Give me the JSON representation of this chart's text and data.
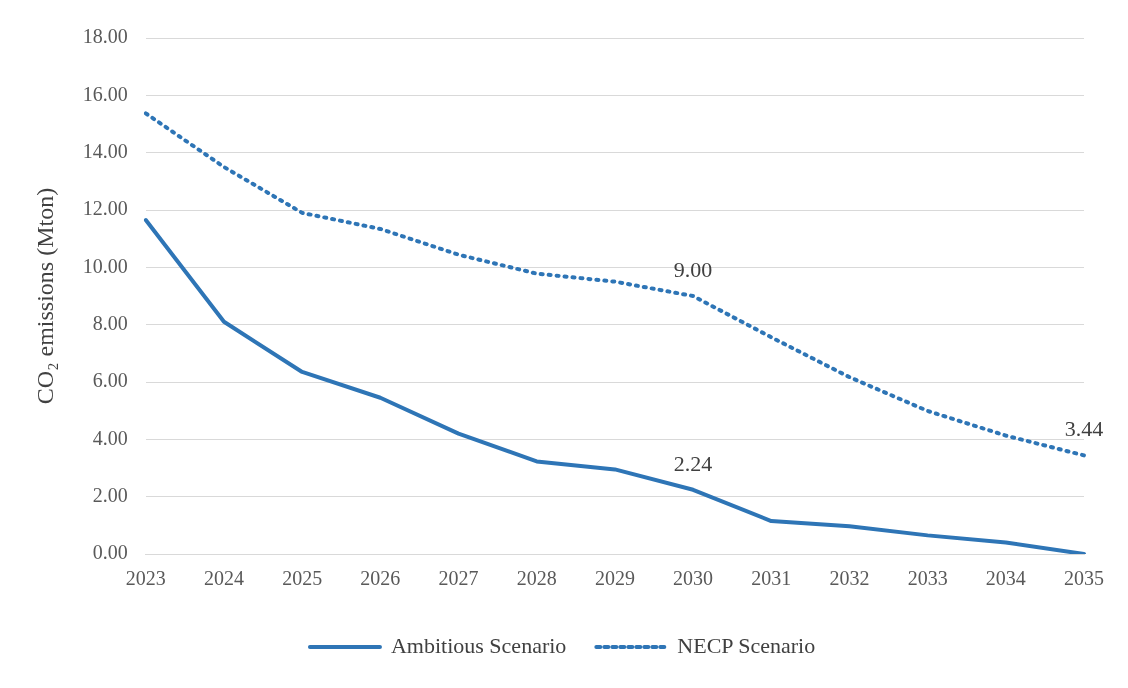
{
  "chart_data": {
    "type": "line",
    "ylabel": "CO₂ emissions (Mton)",
    "categories": [
      "2023",
      "2024",
      "2025",
      "2026",
      "2027",
      "2028",
      "2029",
      "2030",
      "2031",
      "2032",
      "2033",
      "2034",
      "2035"
    ],
    "series": [
      {
        "name": "Ambitious Scenario",
        "color": "#2e75b6",
        "line_style": "solid",
        "values": [
          11.65,
          8.1,
          6.35,
          5.45,
          4.2,
          3.23,
          2.95,
          2.24,
          1.15,
          0.97,
          0.65,
          0.4,
          0
        ],
        "value_labels": [
          null,
          null,
          null,
          null,
          null,
          null,
          null,
          "2.24",
          null,
          null,
          null,
          null,
          null
        ]
      },
      {
        "name": "NECP Scenario",
        "color": "#2e75b6",
        "line_style": "dotted",
        "values": [
          15.37,
          13.5,
          11.9,
          11.34,
          10.44,
          9.78,
          9.5,
          9.0,
          7.56,
          6.17,
          4.99,
          4.13,
          3.44
        ],
        "value_labels": [
          null,
          null,
          null,
          null,
          null,
          null,
          null,
          "9.00",
          null,
          null,
          null,
          null,
          "3.44"
        ]
      }
    ],
    "ylim": [
      0,
      18
    ],
    "yticks": [
      {
        "value": 0,
        "label": "0.00"
      },
      {
        "value": 2,
        "label": "2.00"
      },
      {
        "value": 4,
        "label": "4.00"
      },
      {
        "value": 6,
        "label": "6.00"
      },
      {
        "value": 8,
        "label": "8.00"
      },
      {
        "value": 10,
        "label": "10.00"
      },
      {
        "value": 12,
        "label": "12.00"
      },
      {
        "value": 14,
        "label": "14.00"
      },
      {
        "value": 16,
        "label": "16.00"
      },
      {
        "value": 18,
        "label": "18.00"
      }
    ],
    "grid": "y",
    "legend": "bottom",
    "marker": "none"
  }
}
